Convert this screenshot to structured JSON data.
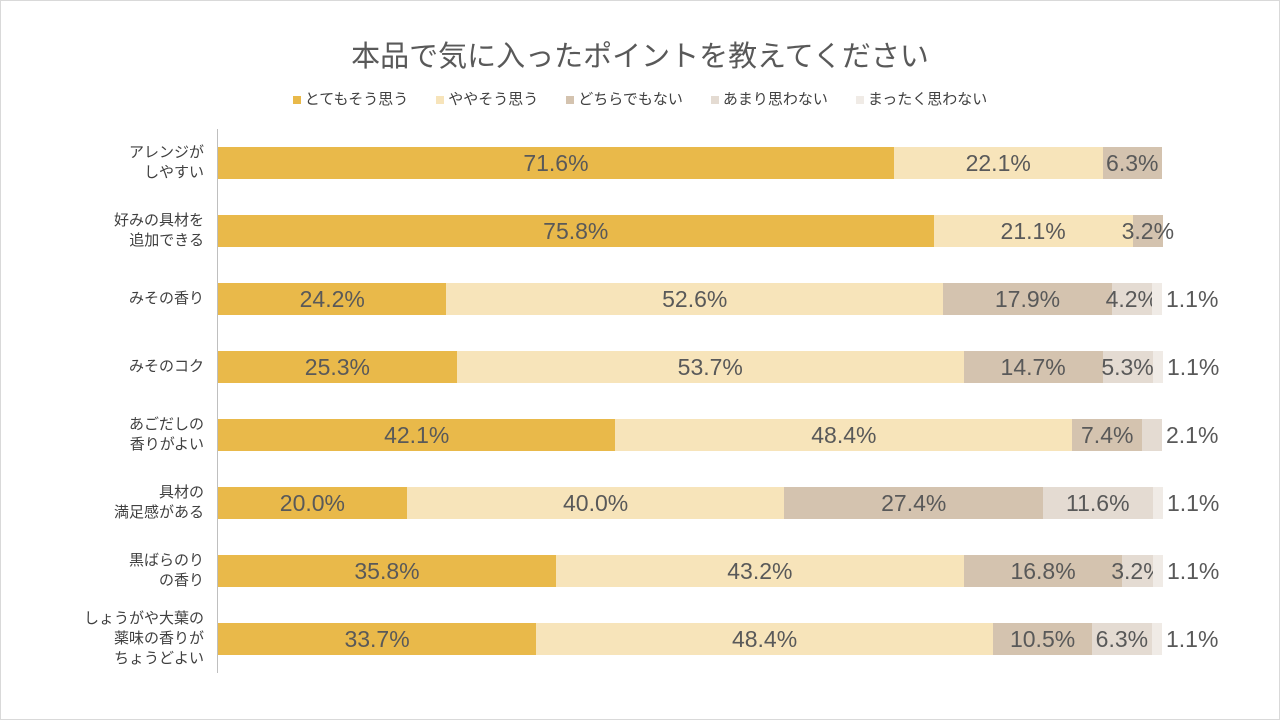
{
  "chart_data": {
    "type": "bar",
    "orientation": "horizontal",
    "stacked": "percent",
    "title": "本品で気に入ったポイントを教えてください",
    "legend": "top",
    "grid": false,
    "xlim": [
      0,
      100
    ],
    "value_suffix": "%",
    "categories": [
      "アレンジが\nしやすい",
      "好みの具材を\n追加できる",
      "みその香り",
      "みそのコク",
      "あごだしの\n香りがよい",
      "具材の\n満足感がある",
      "黒ばらのり\nの香り",
      "しょうがや大葉の\n薬味の香りが\nちょうどよい"
    ],
    "series": [
      {
        "name": "とてもそう思う",
        "color": "#E9B94A",
        "values": [
          71.6,
          75.8,
          24.2,
          25.3,
          42.1,
          20.0,
          35.8,
          33.7
        ]
      },
      {
        "name": "ややそう思う",
        "color": "#F7E4BA",
        "values": [
          22.1,
          21.1,
          52.6,
          53.7,
          48.4,
          40.0,
          43.2,
          48.4
        ]
      },
      {
        "name": "どちらでもない",
        "color": "#D4C3AF",
        "values": [
          6.3,
          3.2,
          17.9,
          14.7,
          7.4,
          27.4,
          16.8,
          10.5
        ]
      },
      {
        "name": "あまり思わない",
        "color": "#E4DBD2",
        "values": [
          0,
          0,
          4.2,
          5.3,
          2.1,
          11.6,
          3.2,
          6.3
        ]
      },
      {
        "name": "まったく思わない",
        "color": "#F0EBE6",
        "values": [
          0,
          0,
          1.1,
          1.1,
          0,
          1.1,
          1.1,
          1.1
        ]
      }
    ]
  }
}
